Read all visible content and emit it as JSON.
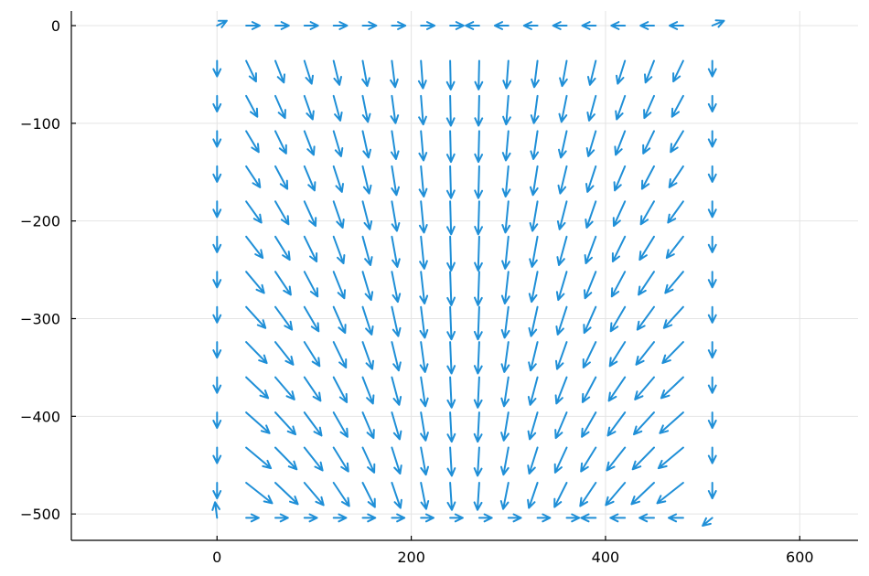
{
  "chart_data": {
    "type": "quiver",
    "xlim": [
      -150,
      660
    ],
    "ylim": [
      -527,
      15
    ],
    "x_ticks": [
      0,
      200,
      400,
      600
    ],
    "y_ticks": [
      0,
      -100,
      -200,
      -300,
      -400,
      -500
    ],
    "x_tick_labels": [
      "0",
      "200",
      "400",
      "600"
    ],
    "y_tick_labels": [
      "0",
      "−100",
      "−200",
      "−300",
      "−400",
      "−500"
    ],
    "grid": true,
    "legend": "none",
    "arrow_color": "#1f8fd7",
    "grid_x": [
      0,
      30,
      60,
      90,
      120,
      150,
      180,
      210,
      240,
      270,
      300,
      330,
      360,
      390,
      420,
      450,
      480,
      510
    ],
    "grid_y": [
      0,
      -36,
      -72,
      -108,
      -144,
      -180,
      -216,
      -252,
      -288,
      -324,
      -360,
      -396,
      -432,
      -468,
      -504
    ],
    "field": "lid-driven cavity flow: vectors sampled on a 18 x 15 grid; top row flows right in the left half and left in the right half, side columns flow downward, interior vectors point down and curve toward the middle"
  }
}
